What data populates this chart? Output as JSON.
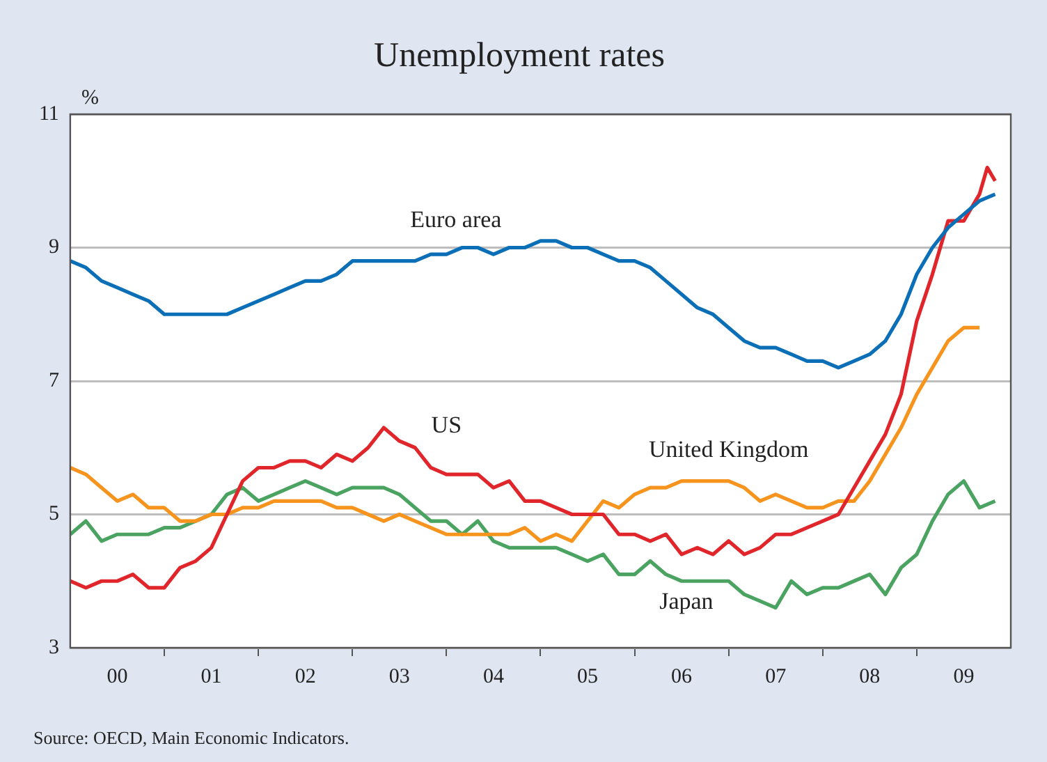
{
  "chart_data": {
    "type": "line",
    "title": "Unemployment rates",
    "ylabel": "%",
    "annotations": [
      "Source: OECD, Main Economic Indicators."
    ],
    "x": [
      "2000-01",
      "2000-03",
      "2000-05",
      "2000-07",
      "2000-09",
      "2000-11",
      "2001-01",
      "2001-03",
      "2001-05",
      "2001-07",
      "2001-09",
      "2001-11",
      "2002-01",
      "2002-03",
      "2002-05",
      "2002-07",
      "2002-09",
      "2002-11",
      "2003-01",
      "2003-03",
      "2003-05",
      "2003-07",
      "2003-09",
      "2003-11",
      "2004-01",
      "2004-03",
      "2004-05",
      "2004-07",
      "2004-09",
      "2004-11",
      "2005-01",
      "2005-03",
      "2005-05",
      "2005-07",
      "2005-09",
      "2005-11",
      "2006-01",
      "2006-03",
      "2006-05",
      "2006-07",
      "2006-09",
      "2006-11",
      "2007-01",
      "2007-03",
      "2007-05",
      "2007-07",
      "2007-09",
      "2007-11",
      "2008-01",
      "2008-03",
      "2008-05",
      "2008-07",
      "2008-09",
      "2008-11",
      "2009-01",
      "2009-03",
      "2009-05",
      "2009-07",
      "2009-09",
      "2009-11"
    ],
    "series": [
      {
        "name": "Euro area",
        "color": "#0a6fb6",
        "values": [
          8.8,
          8.7,
          8.5,
          8.4,
          8.3,
          8.2,
          8.0,
          8.0,
          8.0,
          8.0,
          8.0,
          8.1,
          8.2,
          8.3,
          8.4,
          8.5,
          8.5,
          8.6,
          8.8,
          8.8,
          8.8,
          8.8,
          8.8,
          8.9,
          8.9,
          9.0,
          9.0,
          8.9,
          9.0,
          9.0,
          9.1,
          9.1,
          9.0,
          9.0,
          8.9,
          8.8,
          8.8,
          8.7,
          8.5,
          8.3,
          8.1,
          8.0,
          7.8,
          7.6,
          7.5,
          7.5,
          7.4,
          7.3,
          7.3,
          7.2,
          7.3,
          7.4,
          7.6,
          8.0,
          8.6,
          9.0,
          9.3,
          9.5,
          9.7,
          9.8
        ]
      },
      {
        "name": "US",
        "color": "#e0262b",
        "x": [
          "2000-01",
          "2000-03",
          "2000-05",
          "2000-07",
          "2000-09",
          "2000-11",
          "2001-01",
          "2001-03",
          "2001-05",
          "2001-07",
          "2001-09",
          "2001-11",
          "2002-01",
          "2002-03",
          "2002-05",
          "2002-07",
          "2002-09",
          "2002-11",
          "2003-01",
          "2003-03",
          "2003-05",
          "2003-07",
          "2003-09",
          "2003-11",
          "2004-01",
          "2004-03",
          "2004-05",
          "2004-07",
          "2004-09",
          "2004-11",
          "2005-01",
          "2005-03",
          "2005-05",
          "2005-07",
          "2005-09",
          "2005-11",
          "2006-01",
          "2006-03",
          "2006-05",
          "2006-07",
          "2006-09",
          "2006-11",
          "2007-01",
          "2007-03",
          "2007-05",
          "2007-07",
          "2007-09",
          "2007-11",
          "2008-01",
          "2008-03",
          "2008-05",
          "2008-07",
          "2008-09",
          "2008-11",
          "2009-01",
          "2009-03",
          "2009-05",
          "2009-07",
          "2009-09",
          "2009-10",
          "2009-11"
        ],
        "values": [
          4.0,
          3.9,
          4.0,
          4.0,
          4.1,
          3.9,
          3.9,
          4.2,
          4.3,
          4.5,
          5.0,
          5.5,
          5.7,
          5.7,
          5.8,
          5.8,
          5.7,
          5.9,
          5.8,
          6.0,
          6.3,
          6.1,
          6.0,
          5.7,
          5.6,
          5.6,
          5.6,
          5.4,
          5.5,
          5.2,
          5.2,
          5.1,
          5.0,
          5.0,
          5.0,
          4.7,
          4.7,
          4.6,
          4.7,
          4.4,
          4.5,
          4.4,
          4.6,
          4.4,
          4.5,
          4.7,
          4.7,
          4.8,
          4.9,
          5.0,
          5.4,
          5.8,
          6.2,
          6.8,
          7.9,
          8.6,
          9.4,
          9.4,
          9.8,
          10.2,
          10.0
        ]
      },
      {
        "name": "United Kingdom",
        "color": "#f7941d",
        "values": [
          5.7,
          5.6,
          5.4,
          5.2,
          5.3,
          5.1,
          5.1,
          4.9,
          4.9,
          5.0,
          5.0,
          5.1,
          5.1,
          5.2,
          5.2,
          5.2,
          5.2,
          5.1,
          5.1,
          5.0,
          4.9,
          5.0,
          4.9,
          4.8,
          4.7,
          4.7,
          4.7,
          4.7,
          4.7,
          4.8,
          4.6,
          4.7,
          4.6,
          4.9,
          5.2,
          5.1,
          5.3,
          5.4,
          5.4,
          5.5,
          5.5,
          5.5,
          5.5,
          5.4,
          5.2,
          5.3,
          5.2,
          5.1,
          5.1,
          5.2,
          5.2,
          5.5,
          5.9,
          6.3,
          6.8,
          7.2,
          7.6,
          7.8,
          7.8,
          null
        ]
      },
      {
        "name": "Japan",
        "color": "#4ba361",
        "values": [
          4.7,
          4.9,
          4.6,
          4.7,
          4.7,
          4.7,
          4.8,
          4.8,
          4.9,
          5.0,
          5.3,
          5.4,
          5.2,
          5.3,
          5.4,
          5.5,
          5.4,
          5.3,
          5.4,
          5.4,
          5.4,
          5.3,
          5.1,
          4.9,
          4.9,
          4.7,
          4.9,
          4.6,
          4.5,
          4.5,
          4.5,
          4.5,
          4.4,
          4.3,
          4.4,
          4.1,
          4.1,
          4.3,
          4.1,
          4.0,
          4.0,
          4.0,
          4.0,
          3.8,
          3.7,
          3.6,
          4.0,
          3.8,
          3.9,
          3.9,
          4.0,
          4.1,
          3.8,
          4.2,
          4.4,
          4.9,
          5.3,
          5.5,
          5.1,
          5.2
        ]
      }
    ],
    "xlim": [
      "2000-01",
      "2010-01"
    ],
    "xticks": [
      {
        "value": "2000-07",
        "label": "00"
      },
      {
        "value": "2001-01",
        "label": null
      },
      {
        "value": "2001-07",
        "label": "01"
      },
      {
        "value": "2002-01",
        "label": null
      },
      {
        "value": "2002-07",
        "label": "02"
      },
      {
        "value": "2003-01",
        "label": null
      },
      {
        "value": "2003-07",
        "label": "03"
      },
      {
        "value": "2004-01",
        "label": null
      },
      {
        "value": "2004-07",
        "label": "04"
      },
      {
        "value": "2005-01",
        "label": null
      },
      {
        "value": "2005-07",
        "label": "05"
      },
      {
        "value": "2006-01",
        "label": null
      },
      {
        "value": "2006-07",
        "label": "06"
      },
      {
        "value": "2007-01",
        "label": null
      },
      {
        "value": "2007-07",
        "label": "07"
      },
      {
        "value": "2008-01",
        "label": null
      },
      {
        "value": "2008-07",
        "label": "08"
      },
      {
        "value": "2009-01",
        "label": null
      },
      {
        "value": "2009-07",
        "label": "09"
      }
    ],
    "ylim": [
      3,
      11
    ],
    "yticks": [
      3,
      5,
      7,
      9,
      11
    ],
    "grid": "y"
  }
}
